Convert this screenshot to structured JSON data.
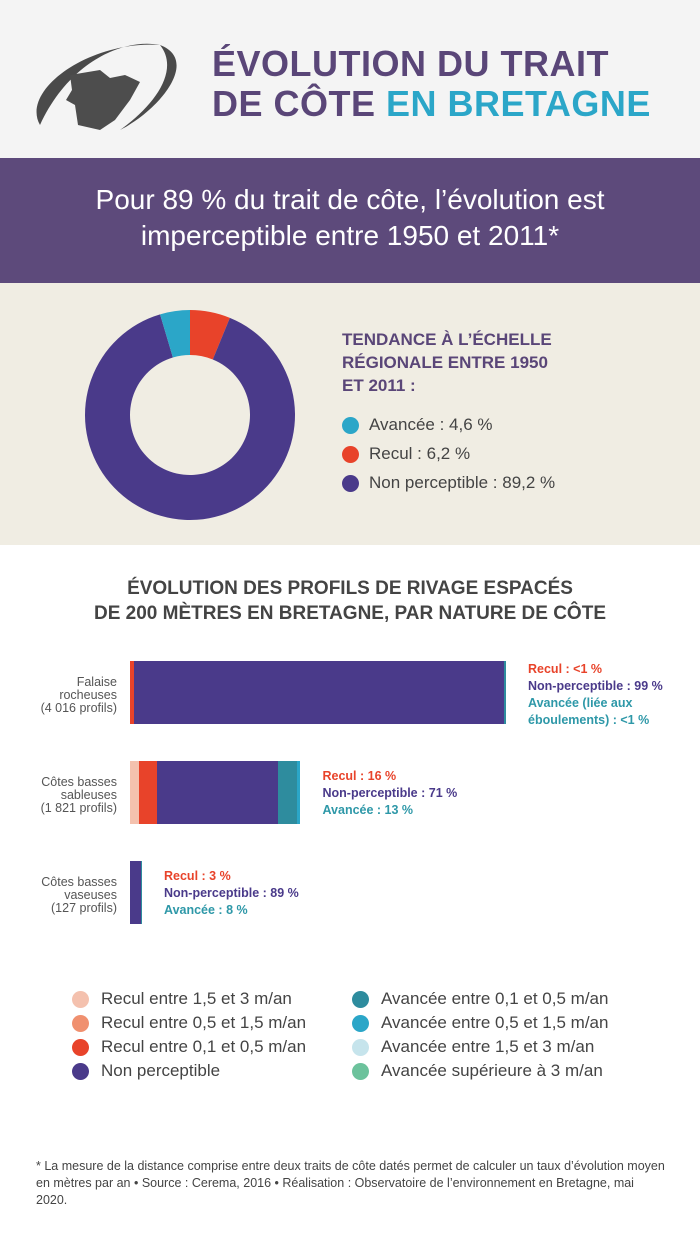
{
  "header": {
    "title_line1": "ÉVOLUTION DU TRAIT",
    "title_line2_a": "DE CÔTE ",
    "title_line2_b": "EN BRETAGNE",
    "logo": "bretagne-map-logo"
  },
  "banner": {
    "line1": "Pour 89 % du trait de côte, l’évolution est",
    "line2": "imperceptible entre 1950 et 2011*"
  },
  "chart_data": [
    {
      "type": "pie",
      "title": "TENDANCE À L’ÉCHELLE RÉGIONALE ENTRE 1950 ET 2011 :",
      "title_lines": [
        "TENDANCE À L’ÉCHELLE",
        "RÉGIONALE ENTRE 1950",
        "ET 2011 :"
      ],
      "donut": true,
      "slices": [
        {
          "name": "Recul",
          "value": 6.2,
          "label": "Recul : 6,2 %",
          "color": "#e8432a"
        },
        {
          "name": "Non perceptible",
          "value": 89.2,
          "label": "Non perceptible : 89,2 %",
          "color": "#4a3a8a"
        },
        {
          "name": "Avancée",
          "value": 4.6,
          "label": "Avancée : 4,6 %",
          "color": "#2ba6c8"
        }
      ],
      "legend_order": [
        2,
        0,
        1
      ]
    },
    {
      "type": "bar",
      "orientation": "horizontal",
      "stacked": true,
      "title_lines": [
        "ÉVOLUTION DES PROFILS DE RIVAGE ESPACÉS",
        "DE 200 MÈTRES EN BRETAGNE, PAR NATURE DE CÔTE"
      ],
      "bar_length_proportional_to": "profile count",
      "categories": [
        {
          "label": [
            "Falaise",
            "rocheuses",
            "(4 016 profils)"
          ],
          "profiles": 4016,
          "segments": [
            {
              "cls": "Recul entre 0,1 et 0,5 m/an",
              "value": 1
            },
            {
              "cls": "Non perceptible",
              "value": 98.5
            },
            {
              "cls": "Avancée entre 0,1 et 0,5 m/an",
              "value": 0.5
            }
          ],
          "labels": [
            {
              "text": "Recul : <1 %",
              "kind": "recul"
            },
            {
              "text": "Non-perceptible : 99 %",
              "kind": "non"
            },
            {
              "text": "Avancée (liée aux",
              "kind": "avancee"
            },
            {
              "text": "éboulements) : <1 %",
              "kind": "avancee"
            }
          ]
        },
        {
          "label": [
            "Côtes basses",
            "sableuses",
            "(1 821 profils)"
          ],
          "profiles": 1821,
          "segments": [
            {
              "cls": "Recul entre 1,5 et 3 m/an",
              "value": 5
            },
            {
              "cls": "Recul entre 0,5 et 1,5 m/an",
              "value": 0
            },
            {
              "cls": "Recul entre 0,1 et 0,5 m/an",
              "value": 11
            },
            {
              "cls": "Non perceptible",
              "value": 71
            },
            {
              "cls": "Avancée entre 0,1 et 0,5 m/an",
              "value": 11
            },
            {
              "cls": "Avancée entre 0,5 et 1,5 m/an",
              "value": 2
            }
          ],
          "labels": [
            {
              "text": "Recul : 16 %",
              "kind": "recul"
            },
            {
              "text": "Non-perceptible : 71 %",
              "kind": "non"
            },
            {
              "text": "Avancée : 13 %",
              "kind": "avancee"
            }
          ]
        },
        {
          "label": [
            "Côtes basses",
            "vaseuses",
            "(127 profils)"
          ],
          "profiles": 127,
          "segments": [
            {
              "cls": "Recul entre 0,1 et 0,5 m/an",
              "value": 3
            },
            {
              "cls": "Non perceptible",
              "value": 89
            },
            {
              "cls": "Avancée entre 0,1 et 0,5 m/an",
              "value": 8
            }
          ],
          "labels": [
            {
              "text": "Recul : 3 %",
              "kind": "recul"
            },
            {
              "text": "Non-perceptible : 89 %",
              "kind": "non"
            },
            {
              "text": "Avancée : 8 %",
              "kind": "avancee"
            }
          ]
        }
      ],
      "legend": [
        {
          "label": "Recul entre 1,5 et 3 m/an",
          "color": "#f4c1ae"
        },
        {
          "label": "Recul entre 0,5 et 1,5 m/an",
          "color": "#f0906f"
        },
        {
          "label": "Recul entre 0,1 et 0,5 m/an",
          "color": "#e8432a"
        },
        {
          "label": "Non perceptible",
          "color": "#4a3a8a"
        },
        {
          "label": "Avancée entre 0,1 et 0,5 m/an",
          "color": "#2e8c9e"
        },
        {
          "label": "Avancée entre 0,5 et 1,5 m/an",
          "color": "#2ba6c8"
        },
        {
          "label": "Avancée entre 1,5 et 3 m/an",
          "color": "#c6e4ec"
        },
        {
          "label": "Avancée supérieure à 3 m/an",
          "color": "#6cc29c"
        }
      ],
      "label_colors": {
        "recul": "#e8432a",
        "non": "#4a3a8a",
        "avancee": "#2e98a8"
      }
    }
  ],
  "footnote": "* La mesure de la distance comprise entre deux traits de côte datés permet de calculer un taux d’évolution moyen en mètres par an • Source : Cerema, 2016 • Réalisation : Observatoire de l’environnement en Bretagne, mai 2020."
}
